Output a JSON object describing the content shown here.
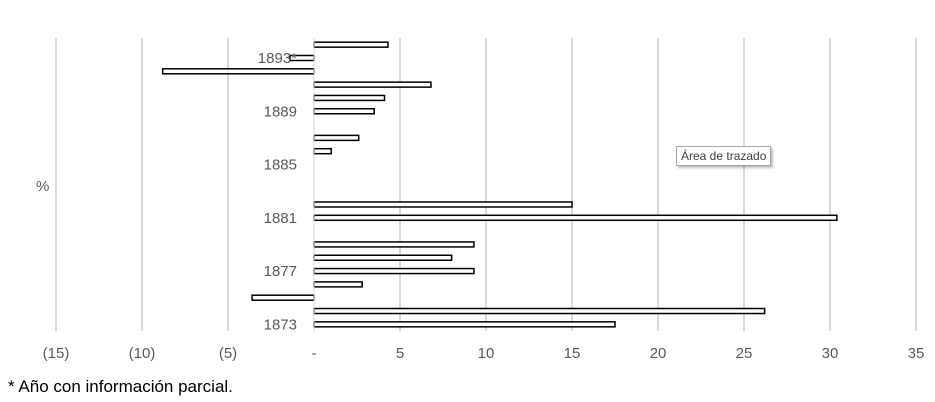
{
  "chart_data": {
    "type": "bar",
    "orientation": "horizontal",
    "title": "",
    "ylabel": "%",
    "xlim": [
      -15,
      35
    ],
    "x_ticks": [
      -15,
      -10,
      -5,
      0,
      5,
      10,
      15,
      20,
      25,
      30,
      35
    ],
    "x_tick_labels": [
      "(15)",
      "(10)",
      "(5)",
      "-",
      "5",
      "10",
      "15",
      "20",
      "25",
      "30",
      "35"
    ],
    "grid": "vertical",
    "legend": "none",
    "categories": [
      "1873",
      "1874",
      "1875",
      "1876",
      "1877",
      "1878",
      "1879",
      "1880",
      "1881",
      "1882",
      "1883",
      "1884",
      "1885",
      "1886",
      "1887",
      "1888",
      "1889",
      "1890",
      "1891",
      "1892",
      "1893*",
      "1894"
    ],
    "category_labels_shown": [
      "1873",
      "1877",
      "1881",
      "1885",
      "1889",
      "1893*"
    ],
    "values": [
      17.5,
      26.2,
      -3.6,
      2.8,
      9.3,
      8.0,
      9.3,
      null,
      30.4,
      15.0,
      null,
      null,
      null,
      1.0,
      2.6,
      null,
      3.5,
      4.1,
      6.8,
      -8.8,
      -1.4,
      4.3
    ],
    "bar_fill": "#ffffff",
    "bar_stroke": "#000000"
  },
  "footnote": "* Año con información parcial.",
  "tooltip": "Área de trazado"
}
